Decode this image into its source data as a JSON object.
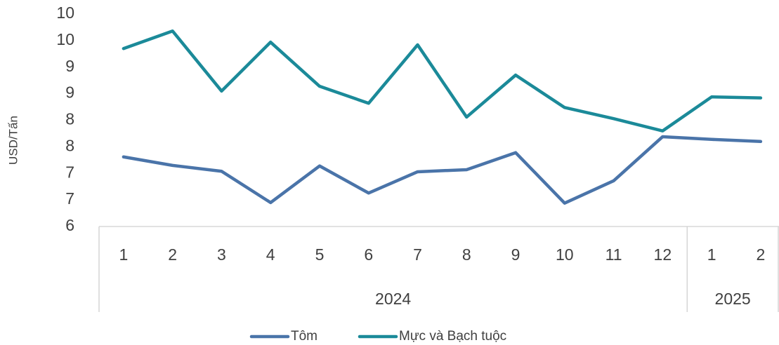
{
  "chart_data": {
    "type": "line",
    "y_label": "USD/Tấn",
    "categories": [
      "1",
      "2",
      "3",
      "4",
      "5",
      "6",
      "7",
      "8",
      "9",
      "10",
      "11",
      "12",
      "1",
      "2"
    ],
    "category_groups": [
      {
        "label": "2024",
        "count": 12
      },
      {
        "label": "2025",
        "count": 2
      }
    ],
    "series": [
      {
        "name": "Tôm",
        "color": "#4a74a9",
        "values": [
          7.31,
          7.15,
          7.04,
          6.45,
          7.14,
          6.63,
          7.03,
          7.07,
          7.39,
          6.44,
          6.86,
          7.69,
          7.64,
          7.6
        ]
      },
      {
        "name": "Mực và Bạch tuộc",
        "color": "#1b8a99",
        "values": [
          9.35,
          9.68,
          8.55,
          9.47,
          8.64,
          8.32,
          9.42,
          8.06,
          8.85,
          8.24,
          8.03,
          7.8,
          8.44,
          8.42
        ]
      }
    ],
    "ylim": [
      6,
      10
    ],
    "yticks": [
      6,
      {
        "value": 6.5,
        "label": "7"
      },
      7,
      {
        "value": 7.5,
        "label": "8"
      },
      8,
      {
        "value": 8.5,
        "label": "9"
      },
      9,
      {
        "value": 9.5,
        "label": "10"
      },
      10
    ],
    "grid": false,
    "legend": "bottom"
  }
}
